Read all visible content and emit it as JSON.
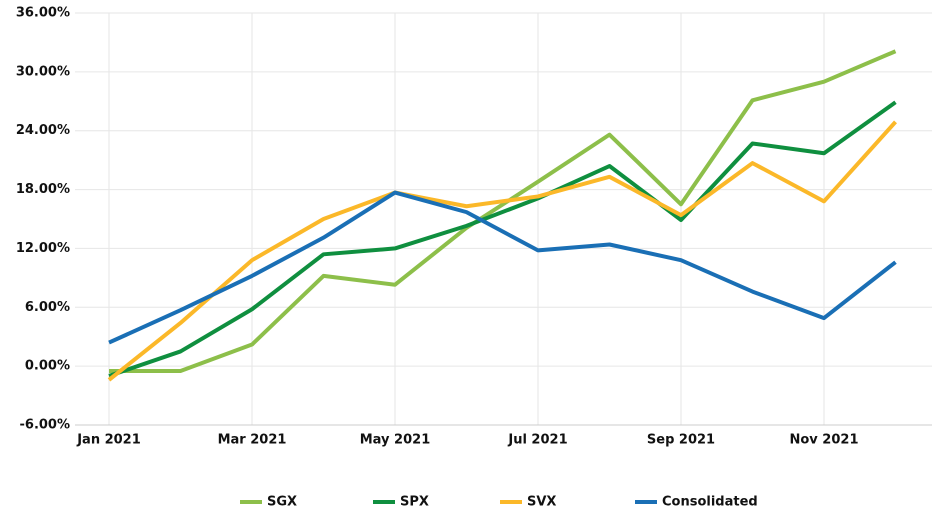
{
  "chart_data": {
    "type": "line",
    "categories": [
      "Jan 2021",
      null,
      "Mar 2021",
      null,
      "May 2021",
      null,
      "Jul 2021",
      null,
      "Sep 2021",
      null,
      "Nov 2021",
      null
    ],
    "series": [
      {
        "name": "SGX",
        "color": "#8dbf4a",
        "values": [
          -0.5,
          -0.5,
          2.2,
          9.2,
          8.3,
          14.1,
          18.8,
          23.6,
          16.5,
          27.1,
          29.0,
          32.1
        ]
      },
      {
        "name": "SPX",
        "color": "#0f8f3f",
        "values": [
          -1.0,
          1.5,
          5.8,
          11.4,
          12.0,
          14.3,
          17.1,
          20.4,
          14.9,
          22.7,
          21.7,
          26.9
        ]
      },
      {
        "name": "SVX",
        "color": "#fbb829",
        "values": [
          -1.4,
          4.4,
          10.8,
          15.0,
          17.7,
          16.3,
          17.3,
          19.3,
          15.4,
          20.7,
          16.8,
          24.9
        ]
      },
      {
        "name": "Consolidated",
        "color": "#1a6fb5",
        "values": [
          2.4,
          5.7,
          9.2,
          13.1,
          17.7,
          15.7,
          11.8,
          12.4,
          10.8,
          7.6,
          4.9,
          10.6
        ]
      }
    ],
    "ylim": [
      -6,
      36
    ],
    "yticks": [
      {
        "value": -6,
        "label": "-6.00%"
      },
      {
        "value": 0,
        "label": "0.00%"
      },
      {
        "value": 6,
        "label": "6.00%"
      },
      {
        "value": 12,
        "label": "12.00%"
      },
      {
        "value": 18,
        "label": "18.00%"
      },
      {
        "value": 24,
        "label": "24.00%"
      },
      {
        "value": 30,
        "label": "30.00%"
      },
      {
        "value": 36,
        "label": "36.00%"
      }
    ],
    "grid": true,
    "legend": "bottom"
  }
}
